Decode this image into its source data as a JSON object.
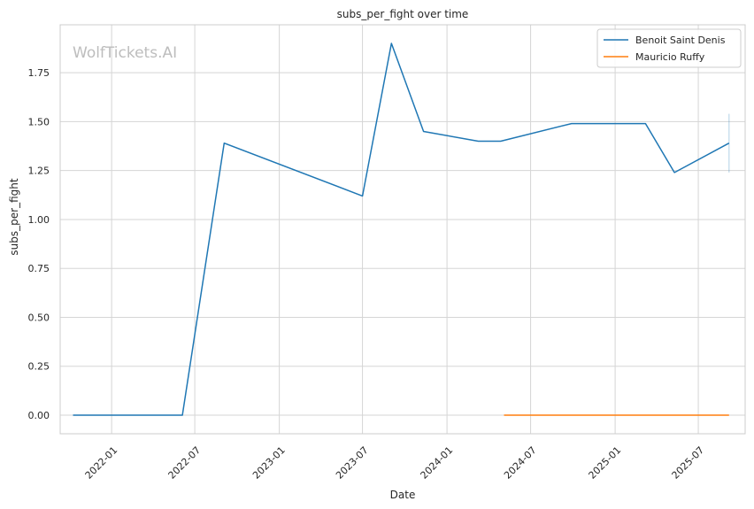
{
  "chart_data": {
    "type": "line",
    "title": "subs_per_fight over time",
    "xlabel": "Date",
    "ylabel": "subs_per_fight",
    "watermark": "WolfTickets.AI",
    "xlim": [
      "2021-09-11",
      "2025-10-11"
    ],
    "ylim": [
      -0.095,
      1.995
    ],
    "x_ticks": [
      "2022-01",
      "2022-07",
      "2023-01",
      "2023-07",
      "2024-01",
      "2024-07",
      "2025-01",
      "2025-07"
    ],
    "y_ticks": [
      "0.00",
      "0.25",
      "0.50",
      "0.75",
      "1.00",
      "1.25",
      "1.50",
      "1.75"
    ],
    "grid": true,
    "legend_position": "top-right",
    "series": [
      {
        "name": "Benoit Saint Denis",
        "color": "#1f77b4",
        "x": [
          "2021-10-09",
          "2022-06-04",
          "2022-09-03",
          "2023-07-01",
          "2023-09-02",
          "2023-11-11",
          "2024-03-09",
          "2024-04-27",
          "2024-09-28",
          "2025-03-08",
          "2025-05-10",
          "2025-09-06"
        ],
        "y": [
          0.0,
          0.0,
          1.39,
          1.12,
          1.9,
          1.45,
          1.4,
          1.4,
          1.49,
          1.49,
          1.24,
          1.39
        ],
        "error_bar": {
          "x": "2025-09-06",
          "low": 1.24,
          "high": 1.54
        }
      },
      {
        "name": "Mauricio Ruffy",
        "color": "#ff7f0e",
        "x": [
          "2024-05-04",
          "2025-09-06"
        ],
        "y": [
          0.0,
          0.0
        ]
      }
    ]
  }
}
